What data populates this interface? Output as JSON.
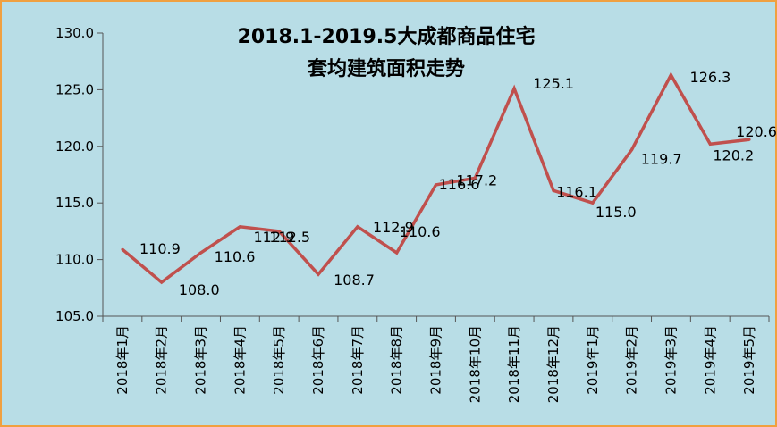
{
  "chart_data": {
    "type": "line",
    "title_line1": "2018.1-2019.5大成都商品住宅",
    "title_line2": "套均建筑面积走势",
    "categories": [
      "2018年1月",
      "2018年2月",
      "2018年3月",
      "2018年4月",
      "2018年5月",
      "2018年6月",
      "2018年7月",
      "2018年8月",
      "2018年9月",
      "2018年10月",
      "2018年11月",
      "2018年12月",
      "2019年1月",
      "2019年2月",
      "2019年3月",
      "2019年4月",
      "2019年5月"
    ],
    "series": [
      {
        "values": [
          110.9,
          108.0,
          110.6,
          112.9,
          112.5,
          108.7,
          112.9,
          110.6,
          116.6,
          117.2,
          125.1,
          116.1,
          115.0,
          119.7,
          126.3,
          120.2,
          120.6
        ],
        "labels": [
          "110.9",
          "108.0",
          "110.6",
          "112.9",
          "112.5",
          "108.7",
          "112.9",
          "110.6",
          "116.6",
          "117.2",
          "125.1",
          "116.1",
          "115.0",
          "119.7",
          "126.3",
          "120.2",
          "120.6"
        ]
      }
    ],
    "ylim": [
      105.0,
      130.0
    ],
    "yticks": [
      "105.0",
      "110.0",
      "115.0",
      "120.0",
      "125.0",
      "130.0"
    ],
    "grid": false,
    "legend": "none",
    "colors": {
      "line": "#c0504d",
      "background": "#b8dde6",
      "border": "#f0a040"
    }
  }
}
